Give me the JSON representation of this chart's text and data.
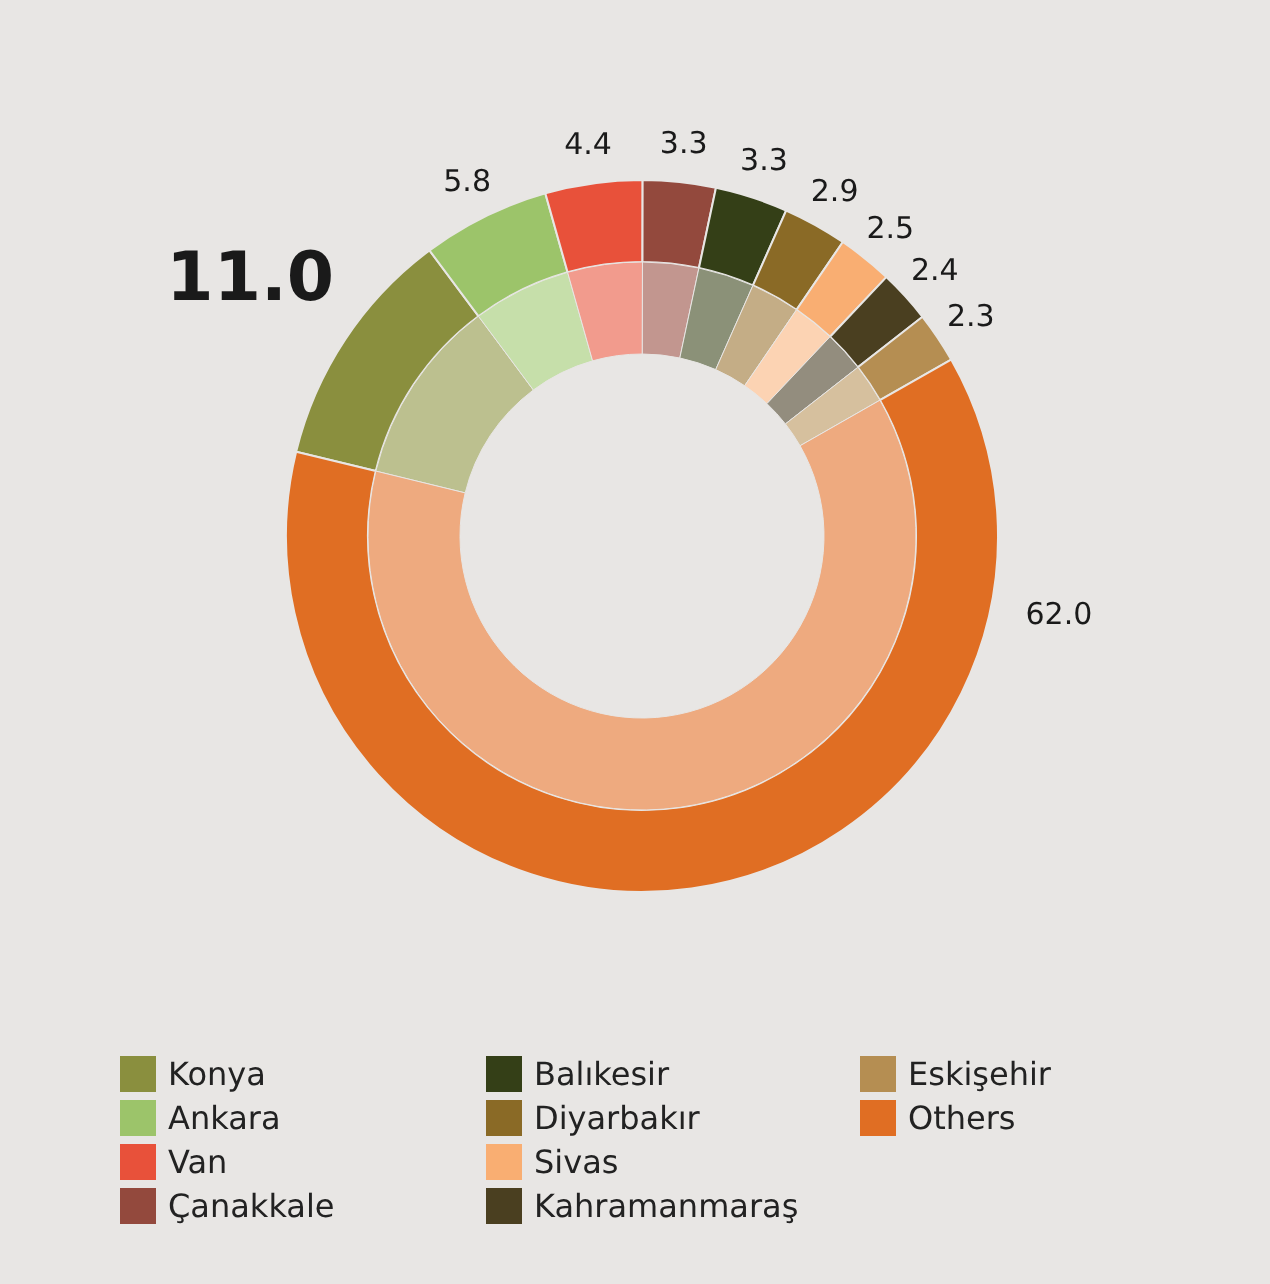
{
  "chart_data": {
    "type": "donut",
    "categories": [
      "Konya",
      "Ankara",
      "Van",
      "Çanakkale",
      "Balıkesir",
      "Diyarbakır",
      "Sivas",
      "Kahramanmaraş",
      "Eskişehir",
      "Others"
    ],
    "series": [
      {
        "values": [
          11.0,
          5.8,
          4.4,
          3.3,
          3.3,
          2.9,
          2.5,
          2.4,
          2.3,
          62.0
        ],
        "colors": [
          "#8a8f3e",
          "#9cc46a",
          "#e8513a",
          "#93493d",
          "#343f17",
          "#8a6a26",
          "#f9ae72",
          "#4a3f20",
          "#b58e52",
          "#e06e23"
        ],
        "value_labels": [
          "11.0",
          "5.8",
          "4.4",
          "3.3",
          "3.3",
          "2.9",
          "2.5",
          "2.4",
          "2.3",
          "62.0"
        ]
      },
      {
        "values": [
          11.0,
          5.8,
          4.4,
          3.3,
          3.3,
          2.9,
          2.5,
          2.4,
          2.3,
          62.0
        ],
        "colors": [
          "#bcc08f",
          "#c6dfaa",
          "#f29b8d",
          "#c2968f",
          "#8b9178",
          "#c4ad86",
          "#fcd3b3",
          "#938d7e",
          "#d6c09e",
          "#eeaa7f"
        ]
      }
    ],
    "legend": "bottom"
  }
}
